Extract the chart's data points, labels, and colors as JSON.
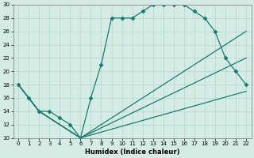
{
  "xlabel": "Humidex (Indice chaleur)",
  "xlim": [
    -0.5,
    22.5
  ],
  "ylim": [
    10,
    30
  ],
  "xticks": [
    0,
    1,
    2,
    3,
    4,
    5,
    6,
    7,
    8,
    9,
    10,
    11,
    12,
    13,
    14,
    15,
    16,
    17,
    18,
    19,
    20,
    21,
    22
  ],
  "yticks": [
    10,
    12,
    14,
    16,
    18,
    20,
    22,
    24,
    26,
    28,
    30
  ],
  "bg_color": "#d5ece6",
  "line_color": "#1a7a6e",
  "grid_color": "#b8d8d0",
  "lines": [
    {
      "x": [
        0,
        1,
        2,
        3,
        4,
        5,
        6,
        7,
        8,
        9,
        10,
        11,
        12,
        13,
        14,
        15,
        16,
        17,
        18,
        19,
        20,
        21,
        22
      ],
      "y": [
        18,
        16,
        14,
        14,
        13,
        12,
        10,
        16,
        21,
        28,
        28,
        28,
        29,
        30,
        30,
        30,
        30,
        29,
        28,
        26,
        22,
        20,
        18
      ],
      "marker": "D",
      "markersize": 2.5
    },
    {
      "x": [
        0,
        2,
        3,
        6,
        22
      ],
      "y": [
        18,
        14,
        13,
        10,
        26
      ],
      "marker": null,
      "markersize": 0
    },
    {
      "x": [
        0,
        2,
        3,
        6,
        22
      ],
      "y": [
        18,
        14,
        13,
        10,
        22
      ],
      "marker": null,
      "markersize": 0
    },
    {
      "x": [
        0,
        2,
        3,
        6,
        22
      ],
      "y": [
        18,
        14,
        13,
        10,
        17
      ],
      "marker": null,
      "markersize": 0
    }
  ]
}
